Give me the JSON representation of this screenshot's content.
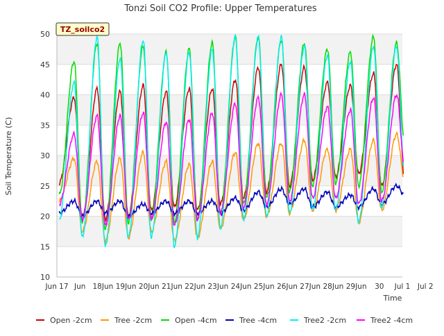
{
  "chart_data": {
    "type": "line",
    "title": "Tonzi Soil CO2 Profile: Upper Temperatures",
    "xlabel": "Time",
    "ylabel": "Soil Temperature (C)",
    "ylim": [
      10,
      50
    ],
    "yticks": [
      10,
      15,
      20,
      25,
      30,
      35,
      40,
      45,
      50
    ],
    "xlim": [
      16.5,
      31.5
    ],
    "xticks": [
      {
        "x": 16.5,
        "label": "Jun 17"
      },
      {
        "x": 17.5,
        "label": "Jun"
      },
      {
        "x": 18.5,
        "label": "18Jun"
      },
      {
        "x": 19.5,
        "label": "19Jun"
      },
      {
        "x": 20.5,
        "label": "20Jun"
      },
      {
        "x": 21.5,
        "label": "21Jun"
      },
      {
        "x": 22.5,
        "label": "22Jun"
      },
      {
        "x": 23.5,
        "label": "23Jun"
      },
      {
        "x": 24.5,
        "label": "24Jun"
      },
      {
        "x": 25.5,
        "label": "25Jun"
      },
      {
        "x": 26.5,
        "label": "26Jun"
      },
      {
        "x": 27.5,
        "label": "27Jun"
      },
      {
        "x": 28.5,
        "label": "28Jun"
      },
      {
        "x": 29.5,
        "label": "29Jun"
      },
      {
        "x": 30.5,
        "label": "30"
      },
      {
        "x": 31.5,
        "label": "Jul 1"
      },
      {
        "x": 32.5,
        "label": "Jul 2"
      }
    ],
    "annotation": "TZ_soilco2",
    "grid": true,
    "legend_position": "bottom",
    "series": [
      {
        "name": "Open -2cm",
        "color": "#cc0000",
        "min": [
          25.5,
          19.5,
          19.5,
          20.0,
          21.0,
          21.5,
          21.0,
          22.0,
          23.0,
          24.0,
          25.0,
          26.0,
          26.5,
          27.0,
          25.0,
          26.0
        ],
        "max": [
          39.5,
          41.0,
          40.5,
          41.5,
          40.5,
          41.0,
          41.0,
          42.5,
          44.5,
          45.0,
          44.5,
          42.0,
          41.5,
          43.5,
          45.0
        ]
      },
      {
        "name": "Tree -2cm",
        "color": "#ff9900",
        "min": [
          22.5,
          17.5,
          16.0,
          16.5,
          17.5,
          16.0,
          16.5,
          18.0,
          19.5,
          20.0,
          20.5,
          21.0,
          21.0,
          19.0,
          21.0,
          26.0
        ],
        "max": [
          29.5,
          29.0,
          29.5,
          30.5,
          29.0,
          28.5,
          29.0,
          30.5,
          32.0,
          32.0,
          32.5,
          31.0,
          31.0,
          32.5,
          33.5
        ]
      },
      {
        "name": "Open -4cm",
        "color": "#00dd00",
        "min": [
          23.5,
          19.0,
          18.0,
          19.0,
          19.5,
          19.0,
          19.5,
          20.5,
          22.0,
          23.0,
          24.0,
          25.0,
          25.5,
          25.0,
          24.0,
          32.0
        ],
        "max": [
          45.5,
          48.5,
          48.5,
          48.0,
          47.0,
          47.5,
          48.5,
          49.5,
          49.5,
          49.0,
          48.5,
          47.5,
          47.0,
          49.5,
          48.5
        ]
      },
      {
        "name": "Tree -4cm",
        "color": "#0000bb",
        "min": [
          20.5,
          20.0,
          20.5,
          20.0,
          20.5,
          20.5,
          20.5,
          20.5,
          21.0,
          21.5,
          22.0,
          21.5,
          21.5,
          21.5,
          22.0,
          23.5
        ],
        "max": [
          22.5,
          22.5,
          22.5,
          22.0,
          22.5,
          22.5,
          22.5,
          23.0,
          24.0,
          24.5,
          24.5,
          24.0,
          23.5,
          24.5,
          25.0
        ]
      },
      {
        "name": "Tree2 -2cm",
        "color": "#00eeee",
        "min": [
          19.5,
          16.5,
          15.0,
          16.5,
          16.5,
          15.0,
          16.5,
          18.0,
          19.5,
          20.0,
          20.5,
          21.0,
          21.0,
          19.0,
          21.5,
          26.5
        ],
        "max": [
          42.0,
          49.5,
          46.0,
          49.0,
          47.0,
          47.0,
          47.5,
          49.5,
          49.5,
          49.5,
          48.0,
          46.5,
          45.5,
          48.0,
          48.0
        ]
      },
      {
        "name": "Tree2 -4cm",
        "color": "#ff00ff",
        "min": [
          22.0,
          19.5,
          18.5,
          19.5,
          19.5,
          18.5,
          19.5,
          20.5,
          21.5,
          22.0,
          22.5,
          23.0,
          23.0,
          22.0,
          22.5,
          28.0
        ],
        "max": [
          33.5,
          36.5,
          36.5,
          37.0,
          35.5,
          36.0,
          37.0,
          38.5,
          39.5,
          40.0,
          40.0,
          38.0,
          37.5,
          39.5,
          40.0
        ]
      }
    ]
  }
}
